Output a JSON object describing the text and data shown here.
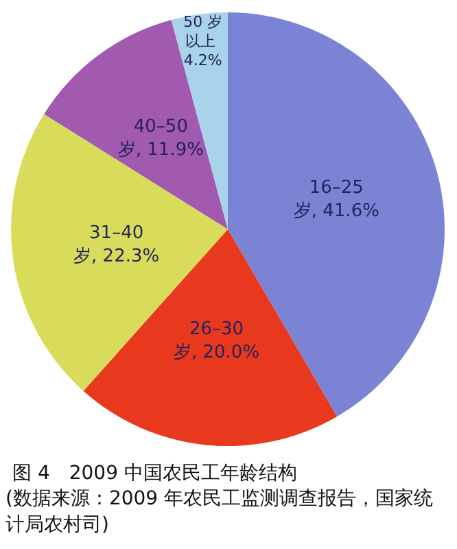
{
  "chart_data": {
    "type": "pie",
    "title": "图 4　2009 中国农民工年龄结构",
    "annotations": [
      "(数据来源：2009 年农民工监测调查报告，国家统计局农村司)"
    ],
    "categories": [
      "16–25 岁",
      "26–30 岁",
      "31–40 岁",
      "40–50 岁",
      "50 岁以上"
    ],
    "values": [
      41.6,
      20.0,
      22.3,
      11.9,
      4.2
    ],
    "value_labels": [
      "41.6%",
      "20.0%",
      "22.3%",
      "11.9%",
      "4.2%"
    ],
    "colors": [
      "#7b84d4",
      "#e8391e",
      "#d8dc5a",
      "#a259b0",
      "#a9d3ea"
    ],
    "legend": false
  }
}
